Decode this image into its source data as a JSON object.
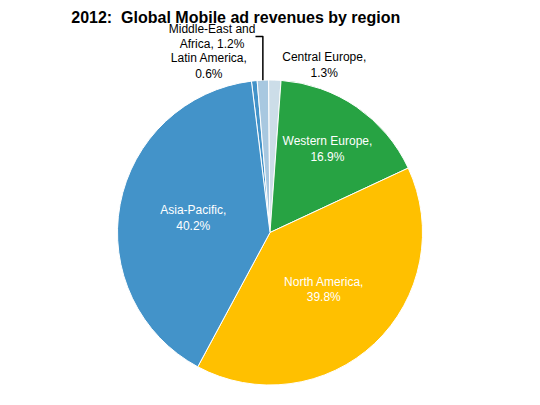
{
  "chart_data": {
    "type": "pie",
    "title": "2012:  Global Mobile ad revenues by region",
    "categories": [
      "Latin America,\n0.6%",
      "Middle-East and\nAfrica, 1.2%",
      "Central Europe,\n1.3%",
      "Western Europe,\n16.9%",
      "North America,\n39.8%",
      "Asia-Pacific,\n40.2%"
    ],
    "values": [
      0.6,
      1.2,
      1.3,
      16.9,
      39.8,
      40.2
    ],
    "colors": [
      "#4393c9",
      "#a8c8e0",
      "#ccdde8",
      "#27a343",
      "#ffc000",
      "#4393c9"
    ]
  }
}
